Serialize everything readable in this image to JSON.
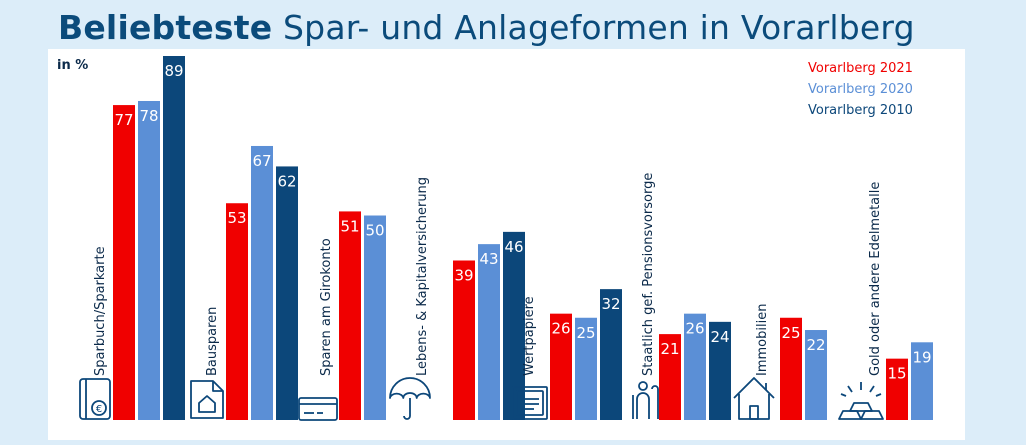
{
  "title_bold": "Beliebteste",
  "title_rest": "Spar- und Anlageformen in Vorarlberg",
  "unit": "in %",
  "colors": {
    "s2021": "#f00000",
    "s2020": "#5b8fd6",
    "s2010": "#0c477a",
    "label": "#0b2a4a"
  },
  "legend": [
    {
      "label": "Vorarlberg 2021",
      "color": "#f00000"
    },
    {
      "label": "Vorarlberg 2020",
      "color": "#5b8fd6"
    },
    {
      "label": "Vorarlberg 2010",
      "color": "#0c477a"
    }
  ],
  "chart_data": {
    "type": "bar",
    "title": "Beliebteste Spar- und Anlageformen in Vorarlberg",
    "ylabel": "in %",
    "ylim": [
      0,
      89
    ],
    "categories": [
      "Sparbuch/Sparkarte",
      "Bausparen",
      "Sparen am Girokonto",
      "Lebens- & Kapitalversicherung",
      "Wertpapiere",
      "Staatlich gef. Pensionsvorsorge",
      "Immobilien",
      "Gold oder andere Edelmetalle"
    ],
    "series": [
      {
        "name": "Vorarlberg 2021",
        "values": [
          77,
          53,
          51,
          39,
          26,
          21,
          25,
          15
        ]
      },
      {
        "name": "Vorarlberg 2020",
        "values": [
          78,
          67,
          50,
          43,
          25,
          26,
          22,
          19
        ]
      },
      {
        "name": "Vorarlberg 2010",
        "values": [
          89,
          62,
          null,
          46,
          32,
          24,
          null,
          null
        ]
      }
    ],
    "icons": [
      "bankbook-icon",
      "house-document-icon",
      "bank-card-icon",
      "umbrella-icon",
      "securities-certificate-icon",
      "pension-person-icon",
      "house-icon",
      "gold-bars-icon"
    ],
    "legend_position": "top-right",
    "grid": false
  }
}
